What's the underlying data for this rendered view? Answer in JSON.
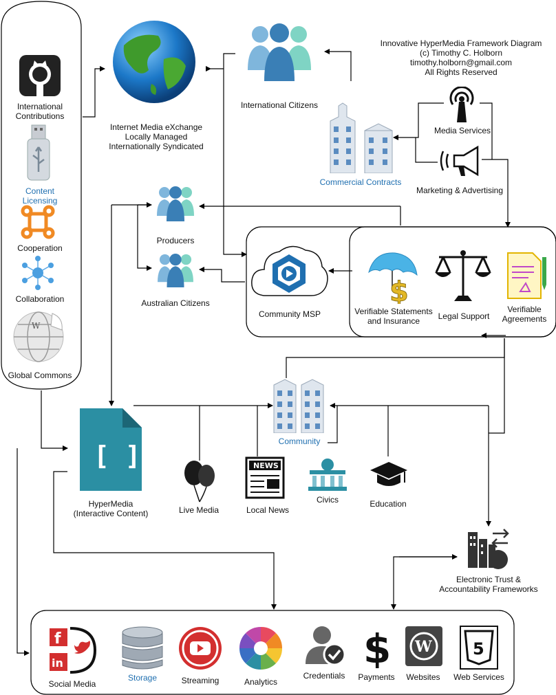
{
  "header": {
    "title": "Innovative HyperMedia Framework Diagram",
    "copyright": "(c) Timothy C. Holborn",
    "email": "timothy.holborn@gmail.com",
    "rights": "All Rights Reserved"
  },
  "cylinder": {
    "international_contributions": "International\nContributions",
    "content_licensing": "Content\nLicensing",
    "cooperation": "Cooperation",
    "collaboration": "Collaboration",
    "global_commons": "Global Commons"
  },
  "nodes": {
    "internet_media": "Internet Media eXchange\nLocally Managed\nInternationally Syndicated",
    "international_citizens": "International Citizens",
    "commercial_contracts": "Commercial Contracts",
    "media_services": "Media Services",
    "marketing": "Marketing & Advertising",
    "producers": "Producers",
    "australian_citizens": "Australian Citizens",
    "community_msp": "Community MSP",
    "verifiable_statements": "Verifiable Statements\nand Insurance",
    "legal_support": "Legal Support",
    "verifiable_agreements": "Verifiable\nAgreements",
    "community": "Community",
    "hypermedia": "HyperMedia\n(Interactive Content)",
    "live_media": "Live Media",
    "local_news": "Local News",
    "civics": "Civics",
    "education": "Education",
    "electronic_trust": "Electronic Trust &\nAccountability Frameworks"
  },
  "bottom": {
    "social_media": "Social Media",
    "storage": "Storage",
    "streaming": "Streaming",
    "analytics": "Analytics",
    "credentials": "Credentials",
    "payments": "Payments",
    "websites": "Websites",
    "web_services": "Web Services"
  },
  "icons": {
    "news_text": "NEWS",
    "brackets": "[ ]",
    "dollar": "$",
    "html5": "5",
    "wordpress": "W"
  },
  "colors": {
    "link_blue": "#1f6fb0",
    "teal": "#2b8fa3",
    "people": "#7fb6dc",
    "orange": "#f08a24",
    "red": "#d32f2f"
  }
}
